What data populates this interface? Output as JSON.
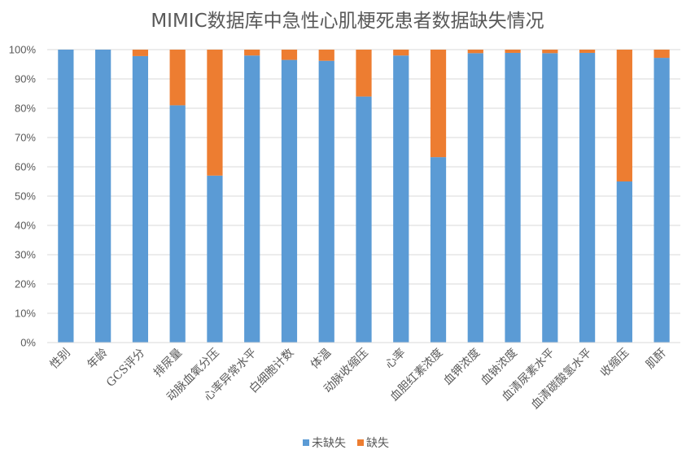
{
  "chart_data": {
    "type": "bar",
    "stacked": true,
    "percent": true,
    "title": "MIMIC数据库中急性心肌梗死患者数据缺失情况",
    "categories": [
      "性别",
      "年龄",
      "GCS评分",
      "排尿量",
      "动脉血氧分压",
      "心率异常水平",
      "白细胞计数",
      "体温",
      "动脉收缩压",
      "心率",
      "血胆红素浓度",
      "血钾浓度",
      "血钠浓度",
      "血清尿素水平",
      "血清碳酸氢水平",
      "收缩压",
      "肌酐"
    ],
    "series": [
      {
        "name": "未缺失",
        "color": "#5B9BD5",
        "values": [
          100,
          100,
          97.8,
          81,
          57,
          98,
          96.5,
          96.2,
          84,
          98,
          63.3,
          98.8,
          98.9,
          98.8,
          98.9,
          55,
          97.2
        ]
      },
      {
        "name": "缺失",
        "color": "#ED7D31",
        "values": [
          0,
          0,
          2.2,
          19,
          43,
          2,
          3.5,
          3.8,
          16,
          2,
          36.7,
          1.2,
          1.1,
          1.2,
          1.1,
          45,
          2.8
        ]
      }
    ],
    "ylim": [
      0,
      100
    ],
    "yticks": [
      "0%",
      "10%",
      "20%",
      "30%",
      "40%",
      "50%",
      "60%",
      "70%",
      "80%",
      "90%",
      "100%"
    ],
    "grid": true,
    "legend": "bottom"
  }
}
